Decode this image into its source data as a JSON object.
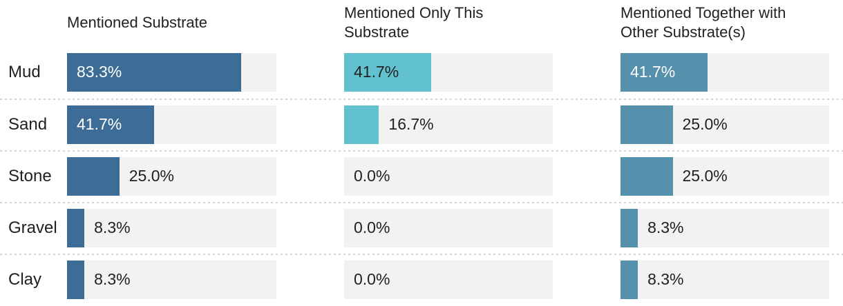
{
  "colors": {
    "text": "#212121",
    "separator": "#d4d4d4",
    "track": "#f2f2f2",
    "background": "#ffffff"
  },
  "chart_data": {
    "type": "bar",
    "orientation": "horizontal",
    "title": "",
    "xlabel": "",
    "ylabel": "",
    "xlim": [
      0,
      100
    ],
    "value_suffix": "%",
    "grid": false,
    "legend_position": "column-headers",
    "categories": [
      "Mud",
      "Sand",
      "Stone",
      "Gravel",
      "Clay"
    ],
    "series": [
      {
        "name": "Mentioned Substrate",
        "values": [
          83.3,
          41.7,
          25.0,
          8.3,
          8.3
        ],
        "labels": [
          "83.3%",
          "41.7%",
          "25.0%",
          "8.3%",
          "8.3%"
        ],
        "color": "#3d6c96",
        "inside_label_color": "#ffffff"
      },
      {
        "name": "Mentioned Only This Substrate",
        "values": [
          41.7,
          16.7,
          0.0,
          0.0,
          0.0
        ],
        "labels": [
          "41.7%",
          "16.7%",
          "0.0%",
          "0.0%",
          "0.0%"
        ],
        "color": "#61c1cf",
        "inside_label_color": "#212121"
      },
      {
        "name": "Mentioned Together with Other Substrate(s)",
        "values": [
          41.7,
          25.0,
          25.0,
          8.3,
          8.3
        ],
        "labels": [
          "41.7%",
          "25.0%",
          "25.0%",
          "8.3%",
          "8.3%"
        ],
        "color": "#5590ac",
        "inside_label_color": "#ffffff"
      }
    ]
  }
}
